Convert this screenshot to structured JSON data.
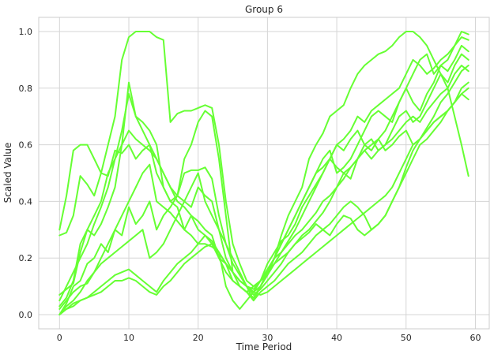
{
  "chart_data": {
    "type": "line",
    "title": "Group 6",
    "xlabel": "Time Period",
    "ylabel": "Scaled Value",
    "xlim": [
      -3,
      62
    ],
    "ylim": [
      -0.05,
      1.05
    ],
    "xticks": [
      0,
      10,
      20,
      30,
      40,
      50,
      60
    ],
    "yticks": [
      0.0,
      0.2,
      0.4,
      0.6,
      0.8,
      1.0
    ],
    "xtick_labels": [
      "0",
      "10",
      "20",
      "30",
      "40",
      "50",
      "60"
    ],
    "ytick_labels": [
      "0.0",
      "0.2",
      "0.4",
      "0.6",
      "0.8",
      "1.0"
    ],
    "grid": true,
    "legend": "none",
    "line_color": "#66ff33",
    "series": [
      {
        "values": [
          0.3,
          0.42,
          0.58,
          0.6,
          0.6,
          0.55,
          0.5,
          0.6,
          0.7,
          0.9,
          0.98,
          1.0,
          1.0,
          1.0,
          0.98,
          0.97,
          0.68,
          0.71,
          0.72,
          0.72,
          0.73,
          0.74,
          0.73,
          0.6,
          0.4,
          0.25,
          0.18,
          0.12,
          0.1,
          0.12,
          0.14,
          0.2,
          0.28,
          0.35,
          0.4,
          0.45,
          0.55,
          0.6,
          0.64,
          0.7,
          0.72,
          0.74,
          0.8,
          0.85,
          0.88,
          0.9,
          0.92,
          0.93,
          0.95,
          0.98,
          1.0,
          1.0,
          0.98,
          0.95,
          0.9,
          0.85,
          0.8,
          0.7,
          0.6,
          0.49
        ]
      },
      {
        "values": [
          0.28,
          0.29,
          0.35,
          0.49,
          0.46,
          0.42,
          0.5,
          0.49,
          0.58,
          0.57,
          0.6,
          0.55,
          0.58,
          0.6,
          0.5,
          0.45,
          0.4,
          0.42,
          0.55,
          0.6,
          0.68,
          0.72,
          0.7,
          0.55,
          0.35,
          0.15,
          0.1,
          0.08,
          0.05,
          0.1,
          0.15,
          0.2,
          0.25,
          0.3,
          0.35,
          0.4,
          0.45,
          0.5,
          0.55,
          0.58,
          0.5,
          0.52,
          0.55,
          0.6,
          0.65,
          0.7,
          0.72,
          0.7,
          0.68,
          0.75,
          0.8,
          0.85,
          0.9,
          0.92,
          0.85,
          0.88,
          0.9,
          0.95,
          1.0,
          0.99
        ]
      },
      {
        "values": [
          0.07,
          0.09,
          0.11,
          0.22,
          0.3,
          0.35,
          0.4,
          0.5,
          0.55,
          0.6,
          0.65,
          0.62,
          0.6,
          0.58,
          0.55,
          0.5,
          0.45,
          0.4,
          0.38,
          0.35,
          0.33,
          0.3,
          0.28,
          0.2,
          0.15,
          0.12,
          0.1,
          0.08,
          0.06,
          0.1,
          0.14,
          0.18,
          0.22,
          0.26,
          0.3,
          0.35,
          0.4,
          0.45,
          0.5,
          0.55,
          0.6,
          0.62,
          0.65,
          0.7,
          0.68,
          0.72,
          0.74,
          0.76,
          0.78,
          0.8,
          0.85,
          0.9,
          0.88,
          0.85,
          0.87,
          0.9,
          0.92,
          0.95,
          0.98,
          0.97
        ]
      },
      {
        "values": [
          0.05,
          0.1,
          0.15,
          0.2,
          0.25,
          0.32,
          0.38,
          0.45,
          0.55,
          0.65,
          0.78,
          0.7,
          0.65,
          0.6,
          0.55,
          0.5,
          0.45,
          0.42,
          0.4,
          0.38,
          0.45,
          0.42,
          0.4,
          0.3,
          0.2,
          0.15,
          0.12,
          0.1,
          0.08,
          0.12,
          0.16,
          0.2,
          0.25,
          0.3,
          0.35,
          0.4,
          0.45,
          0.5,
          0.52,
          0.55,
          0.6,
          0.58,
          0.62,
          0.65,
          0.6,
          0.58,
          0.62,
          0.65,
          0.7,
          0.75,
          0.8,
          0.75,
          0.72,
          0.78,
          0.82,
          0.88,
          0.86,
          0.9,
          0.95,
          0.93
        ]
      },
      {
        "values": [
          0.03,
          0.06,
          0.12,
          0.25,
          0.3,
          0.28,
          0.32,
          0.38,
          0.45,
          0.6,
          0.82,
          0.7,
          0.68,
          0.65,
          0.6,
          0.45,
          0.4,
          0.38,
          0.3,
          0.35,
          0.3,
          0.28,
          0.25,
          0.2,
          0.18,
          0.15,
          0.12,
          0.1,
          0.09,
          0.12,
          0.18,
          0.22,
          0.26,
          0.28,
          0.32,
          0.38,
          0.42,
          0.46,
          0.5,
          0.55,
          0.52,
          0.5,
          0.48,
          0.55,
          0.6,
          0.62,
          0.58,
          0.6,
          0.65,
          0.7,
          0.72,
          0.68,
          0.7,
          0.75,
          0.8,
          0.85,
          0.82,
          0.88,
          0.92,
          0.9
        ]
      },
      {
        "values": [
          0.0,
          0.04,
          0.1,
          0.12,
          0.18,
          0.2,
          0.25,
          0.22,
          0.3,
          0.28,
          0.38,
          0.32,
          0.35,
          0.4,
          0.3,
          0.35,
          0.38,
          0.42,
          0.5,
          0.51,
          0.51,
          0.52,
          0.48,
          0.35,
          0.25,
          0.18,
          0.14,
          0.1,
          0.07,
          0.09,
          0.12,
          0.15,
          0.18,
          0.22,
          0.25,
          0.28,
          0.3,
          0.33,
          0.36,
          0.4,
          0.45,
          0.5,
          0.52,
          0.55,
          0.58,
          0.6,
          0.62,
          0.58,
          0.6,
          0.63,
          0.65,
          0.6,
          0.62,
          0.65,
          0.68,
          0.7,
          0.72,
          0.75,
          0.78,
          0.8
        ]
      },
      {
        "values": [
          0.0,
          0.03,
          0.05,
          0.08,
          0.12,
          0.15,
          0.2,
          0.25,
          0.3,
          0.35,
          0.4,
          0.45,
          0.5,
          0.53,
          0.4,
          0.38,
          0.36,
          0.33,
          0.3,
          0.28,
          0.25,
          0.25,
          0.24,
          0.22,
          0.1,
          0.05,
          0.02,
          0.05,
          0.08,
          0.1,
          0.15,
          0.2,
          0.22,
          0.25,
          0.28,
          0.3,
          0.33,
          0.36,
          0.4,
          0.42,
          0.45,
          0.48,
          0.52,
          0.55,
          0.58,
          0.55,
          0.58,
          0.6,
          0.62,
          0.65,
          0.68,
          0.7,
          0.68,
          0.72,
          0.75,
          0.78,
          0.8,
          0.85,
          0.88,
          0.86
        ]
      },
      {
        "values": [
          0.02,
          0.05,
          0.08,
          0.1,
          0.11,
          0.15,
          0.18,
          0.2,
          0.22,
          0.24,
          0.26,
          0.28,
          0.3,
          0.2,
          0.22,
          0.25,
          0.3,
          0.35,
          0.4,
          0.45,
          0.5,
          0.4,
          0.35,
          0.3,
          0.25,
          0.2,
          0.15,
          0.1,
          0.05,
          0.08,
          0.1,
          0.12,
          0.15,
          0.18,
          0.2,
          0.22,
          0.25,
          0.28,
          0.3,
          0.32,
          0.35,
          0.38,
          0.4,
          0.38,
          0.35,
          0.3,
          0.32,
          0.35,
          0.4,
          0.45,
          0.5,
          0.55,
          0.6,
          0.62,
          0.65,
          0.68,
          0.72,
          0.75,
          0.8,
          0.82
        ]
      },
      {
        "values": [
          0.0,
          0.02,
          0.03,
          0.05,
          0.06,
          0.08,
          0.1,
          0.12,
          0.14,
          0.15,
          0.16,
          0.14,
          0.12,
          0.1,
          0.08,
          0.12,
          0.15,
          0.18,
          0.2,
          0.22,
          0.25,
          0.28,
          0.26,
          0.22,
          0.18,
          0.12,
          0.1,
          0.08,
          0.1,
          0.12,
          0.15,
          0.18,
          0.2,
          0.22,
          0.25,
          0.27,
          0.29,
          0.32,
          0.3,
          0.28,
          0.32,
          0.35,
          0.34,
          0.3,
          0.28,
          0.3,
          0.32,
          0.35,
          0.4,
          0.45,
          0.52,
          0.58,
          0.62,
          0.65,
          0.68,
          0.7,
          0.72,
          0.75,
          0.78,
          0.76
        ]
      },
      {
        "values": [
          0.0,
          0.02,
          0.04,
          0.05,
          0.06,
          0.07,
          0.08,
          0.1,
          0.12,
          0.12,
          0.13,
          0.12,
          0.1,
          0.08,
          0.07,
          0.1,
          0.12,
          0.15,
          0.18,
          0.2,
          0.22,
          0.24,
          0.25,
          0.22,
          0.18,
          0.15,
          0.12,
          0.1,
          0.08,
          0.07,
          0.08,
          0.1,
          0.12,
          0.14,
          0.16,
          0.18,
          0.2,
          0.22,
          0.24,
          0.26,
          0.28,
          0.3,
          0.32,
          0.34,
          0.36,
          0.38,
          0.4,
          0.42,
          0.45,
          0.5,
          0.55,
          0.6,
          0.62,
          0.66,
          0.7,
          0.75,
          0.78,
          0.82,
          0.86,
          0.88
        ]
      }
    ]
  }
}
